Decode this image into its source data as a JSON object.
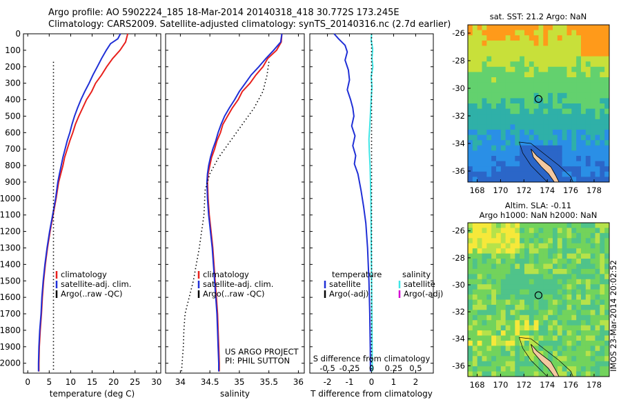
{
  "header": {
    "line1": "Argo profile: AO 5902224_185 18-Mar-2014 20140318_418 30.772S 173.245E",
    "line2": "Climatology: CARS2009. Satellite-adjusted climatology: synTS_20140316.nc (2.7d earlier)"
  },
  "colors": {
    "climatology": "#e8201c",
    "satellite": "#1f2fd6",
    "argo": "#000000",
    "sat_salinity": "#3fe6e6",
    "argo_adj_salinity": "#d400d4"
  },
  "chart_data": [
    {
      "type": "line",
      "name": "temperature",
      "xlabel": "temperature (deg C)",
      "ylabel": "",
      "xlim": [
        -1,
        31
      ],
      "ylim": [
        2060,
        0
      ],
      "xticks": [
        0,
        5,
        10,
        15,
        20,
        25,
        30
      ],
      "yticks": [
        0,
        100,
        200,
        300,
        400,
        500,
        600,
        700,
        800,
        900,
        1000,
        1100,
        1200,
        1300,
        1400,
        1500,
        1600,
        1700,
        1800,
        1900,
        2000
      ],
      "series": [
        {
          "name": "climatology",
          "color": "#e8201c",
          "style": "solid",
          "points": [
            [
              23.3,
              0
            ],
            [
              22.8,
              50
            ],
            [
              21.5,
              100
            ],
            [
              19.8,
              150
            ],
            [
              18.4,
              200
            ],
            [
              17.2,
              250
            ],
            [
              15.8,
              300
            ],
            [
              14.9,
              350
            ],
            [
              13.7,
              400
            ],
            [
              12.8,
              450
            ],
            [
              11.9,
              500
            ],
            [
              11.1,
              550
            ],
            [
              10.5,
              600
            ],
            [
              9.8,
              650
            ],
            [
              9.2,
              700
            ],
            [
              8.6,
              750
            ],
            [
              8.2,
              800
            ],
            [
              7.7,
              850
            ],
            [
              7.2,
              900
            ],
            [
              6.6,
              1000
            ],
            [
              5.9,
              1100
            ],
            [
              5.2,
              1200
            ],
            [
              4.6,
              1300
            ],
            [
              4.1,
              1400
            ],
            [
              3.7,
              1500
            ],
            [
              3.4,
              1600
            ],
            [
              3.2,
              1700
            ],
            [
              2.9,
              1800
            ],
            [
              2.7,
              1900
            ],
            [
              2.6,
              2000
            ],
            [
              2.6,
              2050
            ]
          ]
        },
        {
          "name": "satellite-adj. clim.",
          "color": "#1f2fd6",
          "style": "solid",
          "points": [
            [
              21.6,
              0
            ],
            [
              21.0,
              30
            ],
            [
              19.3,
              60
            ],
            [
              18.3,
              100
            ],
            [
              17.2,
              150
            ],
            [
              16.2,
              200
            ],
            [
              15.2,
              250
            ],
            [
              14.3,
              300
            ],
            [
              13.3,
              350
            ],
            [
              12.4,
              400
            ],
            [
              11.6,
              450
            ],
            [
              10.9,
              500
            ],
            [
              10.3,
              550
            ],
            [
              9.8,
              600
            ],
            [
              9.2,
              650
            ],
            [
              8.7,
              700
            ],
            [
              8.2,
              750
            ],
            [
              7.8,
              800
            ],
            [
              7.4,
              850
            ],
            [
              7.0,
              900
            ],
            [
              6.5,
              1000
            ],
            [
              5.8,
              1100
            ],
            [
              5.1,
              1200
            ],
            [
              4.5,
              1300
            ],
            [
              4.0,
              1400
            ],
            [
              3.6,
              1500
            ],
            [
              3.3,
              1600
            ],
            [
              3.1,
              1700
            ],
            [
              2.8,
              1800
            ],
            [
              2.6,
              1900
            ],
            [
              2.5,
              2000
            ],
            [
              2.5,
              2050
            ]
          ]
        },
        {
          "name": "Argo(..raw -QC)",
          "color": "#000000",
          "style": "dotted",
          "points": [
            [
              6.0,
              170
            ],
            [
              6.0,
              2050
            ]
          ]
        }
      ],
      "legend": {
        "placement": "lower-middle",
        "entries": [
          "climatology",
          "satellite-adj. clim.",
          "Argo(..raw -QC)"
        ]
      }
    },
    {
      "type": "line",
      "name": "salinity",
      "xlabel": "salinity",
      "ylabel": "",
      "xlim": [
        33.75,
        36.1
      ],
      "ylim": [
        2060,
        0
      ],
      "xticks": [
        34,
        34.5,
        35,
        35.5,
        36
      ],
      "series": [
        {
          "name": "climatology",
          "color": "#e8201c",
          "style": "solid",
          "points": [
            [
              35.72,
              0
            ],
            [
              35.71,
              50
            ],
            [
              35.63,
              100
            ],
            [
              35.48,
              150
            ],
            [
              35.4,
              200
            ],
            [
              35.28,
              250
            ],
            [
              35.18,
              300
            ],
            [
              35.05,
              350
            ],
            [
              34.98,
              400
            ],
            [
              34.88,
              450
            ],
            [
              34.8,
              500
            ],
            [
              34.72,
              550
            ],
            [
              34.68,
              600
            ],
            [
              34.62,
              650
            ],
            [
              34.58,
              700
            ],
            [
              34.53,
              750
            ],
            [
              34.5,
              800
            ],
            [
              34.47,
              850
            ],
            [
              34.46,
              900
            ],
            [
              34.47,
              1000
            ],
            [
              34.49,
              1100
            ],
            [
              34.52,
              1200
            ],
            [
              34.55,
              1300
            ],
            [
              34.57,
              1400
            ],
            [
              34.59,
              1500
            ],
            [
              34.61,
              1600
            ],
            [
              34.63,
              1700
            ],
            [
              34.64,
              1800
            ],
            [
              34.65,
              1900
            ],
            [
              34.66,
              2000
            ],
            [
              34.66,
              2050
            ]
          ]
        },
        {
          "name": "satellite-adj. clim.",
          "color": "#1f2fd6",
          "style": "solid",
          "points": [
            [
              35.72,
              0
            ],
            [
              35.7,
              50
            ],
            [
              35.58,
              100
            ],
            [
              35.45,
              150
            ],
            [
              35.33,
              200
            ],
            [
              35.2,
              250
            ],
            [
              35.1,
              300
            ],
            [
              35.0,
              350
            ],
            [
              34.92,
              400
            ],
            [
              34.83,
              450
            ],
            [
              34.75,
              500
            ],
            [
              34.69,
              550
            ],
            [
              34.64,
              600
            ],
            [
              34.6,
              650
            ],
            [
              34.55,
              700
            ],
            [
              34.51,
              750
            ],
            [
              34.48,
              800
            ],
            [
              34.46,
              850
            ],
            [
              34.45,
              900
            ],
            [
              34.46,
              1000
            ],
            [
              34.48,
              1100
            ],
            [
              34.51,
              1200
            ],
            [
              34.54,
              1300
            ],
            [
              34.56,
              1400
            ],
            [
              34.58,
              1500
            ],
            [
              34.6,
              1600
            ],
            [
              34.62,
              1700
            ],
            [
              34.63,
              1800
            ],
            [
              34.64,
              1900
            ],
            [
              34.65,
              2000
            ],
            [
              34.65,
              2050
            ]
          ]
        },
        {
          "name": "Argo(..raw -QC)",
          "color": "#000000",
          "style": "dotted",
          "points": [
            [
              35.5,
              170
            ],
            [
              35.47,
              250
            ],
            [
              35.4,
              350
            ],
            [
              35.25,
              450
            ],
            [
              35.05,
              550
            ],
            [
              34.85,
              650
            ],
            [
              34.65,
              750
            ],
            [
              34.5,
              850
            ],
            [
              34.42,
              950
            ],
            [
              34.4,
              1100
            ],
            [
              34.36,
              1200
            ],
            [
              34.32,
              1300
            ],
            [
              34.27,
              1400
            ],
            [
              34.22,
              1500
            ],
            [
              34.15,
              1600
            ],
            [
              34.08,
              1700
            ],
            [
              34.06,
              1800
            ],
            [
              34.05,
              1900
            ],
            [
              34.03,
              2000
            ],
            [
              34.02,
              2050
            ]
          ]
        }
      ],
      "legend": {
        "placement": "lower-middle",
        "entries": [
          "climatology",
          "satellite-adj. clim.",
          "Argo(..raw -QC)"
        ]
      },
      "annotations": [
        "US ARGO PROJECT",
        "PI: PHIL SUTTON"
      ]
    },
    {
      "type": "line",
      "name": "difference",
      "xlabel": "T difference from climatology",
      "top_label": "S difference from climatology",
      "xlim": [
        -2.8,
        2.8
      ],
      "ylim": [
        2060,
        0
      ],
      "xticks": [
        -2,
        -1,
        0,
        1,
        2
      ],
      "top_ticks": [
        "-0.5",
        "-0.25",
        "0",
        "0.25",
        "0.5"
      ],
      "series": [
        {
          "name": "temperature satellite",
          "color": "#1f2fd6",
          "style": "solid",
          "points": [
            [
              -1.7,
              0
            ],
            [
              -1.5,
              30
            ],
            [
              -1.2,
              70
            ],
            [
              -1.1,
              110
            ],
            [
              -1.2,
              160
            ],
            [
              -1.05,
              220
            ],
            [
              -1.0,
              280
            ],
            [
              -1.1,
              340
            ],
            [
              -0.95,
              400
            ],
            [
              -0.85,
              450
            ],
            [
              -0.8,
              500
            ],
            [
              -0.9,
              560
            ],
            [
              -0.75,
              620
            ],
            [
              -0.85,
              680
            ],
            [
              -0.72,
              740
            ],
            [
              -0.78,
              790
            ],
            [
              -0.62,
              850
            ],
            [
              -0.48,
              950
            ],
            [
              -0.36,
              1050
            ],
            [
              -0.26,
              1150
            ],
            [
              -0.18,
              1300
            ],
            [
              -0.12,
              1500
            ],
            [
              -0.08,
              1700
            ],
            [
              -0.06,
              1900
            ],
            [
              -0.05,
              2050
            ]
          ]
        },
        {
          "name": "salinity satellite",
          "color": "#3fe6e6",
          "style": "solid",
          "points": [
            [
              0.0,
              0
            ],
            [
              -0.02,
              40
            ],
            [
              0.05,
              90
            ],
            [
              0.02,
              150
            ],
            [
              0.06,
              200
            ],
            [
              -0.02,
              260
            ],
            [
              0.02,
              320
            ],
            [
              -0.02,
              400
            ],
            [
              -0.05,
              480
            ],
            [
              -0.08,
              560
            ],
            [
              -0.12,
              640
            ],
            [
              -0.1,
              720
            ],
            [
              -0.07,
              800
            ],
            [
              -0.05,
              900
            ],
            [
              -0.03,
              1000
            ],
            [
              -0.02,
              1200
            ],
            [
              0.0,
              1500
            ],
            [
              0.02,
              1800
            ],
            [
              0.03,
              2000
            ],
            [
              0.03,
              2050
            ]
          ]
        },
        {
          "name": "reference",
          "color": "#000000",
          "style": "dotted",
          "points": [
            [
              0,
              0
            ],
            [
              0,
              2050
            ]
          ]
        }
      ],
      "legend": {
        "placement": "lower-middle",
        "columns": [
          {
            "title": "temperature",
            "entries": [
              "satellite",
              "Argo(-adj)"
            ]
          },
          {
            "title": "salinity",
            "entries": [
              "satellite",
              "Argo(-adj)"
            ]
          }
        ]
      }
    },
    {
      "type": "heatmap",
      "name": "sst-map",
      "title": "sat. SST: 21.2  Argo: NaN",
      "xlim": [
        167.2,
        179.3
      ],
      "ylim": [
        -36.8,
        -25.4
      ],
      "xticks": [
        168,
        170,
        172,
        174,
        176,
        178
      ],
      "yticks": [
        -26,
        -28,
        -30,
        -32,
        -34,
        -36
      ],
      "marker": {
        "lon": 173.245,
        "lat": -30.772
      }
    },
    {
      "type": "heatmap",
      "name": "sla-map",
      "title_line1": "Altim. SLA: -0.11",
      "title_line2": "Argo h1000: NaN h2000: NaN",
      "xlim": [
        167.2,
        179.3
      ],
      "ylim": [
        -36.8,
        -25.4
      ],
      "xticks": [
        168,
        170,
        172,
        174,
        176,
        178
      ],
      "yticks": [
        -26,
        -28,
        -30,
        -32,
        -34,
        -36
      ],
      "marker": {
        "lon": 173.245,
        "lat": -30.772
      }
    }
  ],
  "footer": {
    "stamp": "IMOS 23-Mar-2014 20:02:52"
  }
}
